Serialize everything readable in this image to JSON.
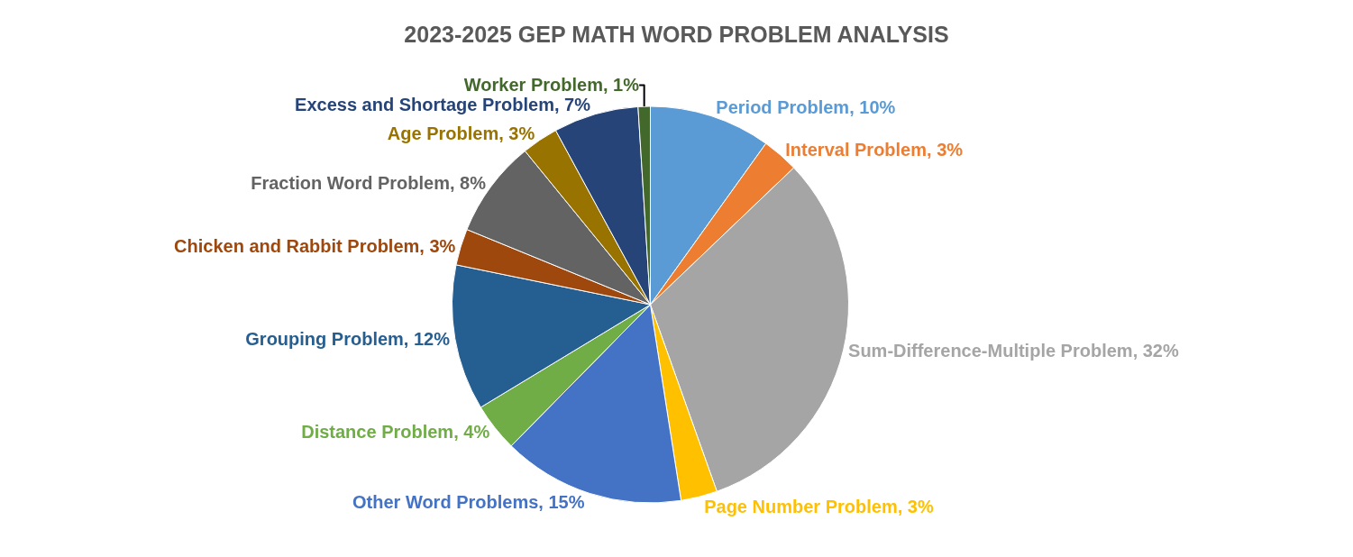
{
  "chart_data": {
    "type": "pie",
    "title": "2023-2025 GEP MATH WORD PROBLEM ANALYSIS",
    "categories": [
      "Period Problem",
      "Interval Problem",
      "Sum-Difference-Multiple Problem",
      "Page Number Problem",
      "Other Word Problems",
      "Distance Problem",
      "Grouping Problem",
      "Chicken and Rabbit Problem",
      "Fraction Word Problem",
      "Age Problem",
      "Excess and Shortage Problem",
      "Worker Problem"
    ],
    "values": [
      10,
      3,
      32,
      3,
      15,
      4,
      12,
      3,
      8,
      3,
      7,
      1
    ],
    "value_labels": [
      "10%",
      "3%",
      "32%",
      "3%",
      "15%",
      "4%",
      "12%",
      "3%",
      "8%",
      "3%",
      "7%",
      "1%"
    ],
    "colors": [
      "#5b9bd5",
      "#ed7d31",
      "#a5a5a5",
      "#ffc000",
      "#4472c4",
      "#70ad47",
      "#255e91",
      "#9e480e",
      "#636363",
      "#997300",
      "#264478",
      "#43682b"
    ],
    "legend": false
  }
}
